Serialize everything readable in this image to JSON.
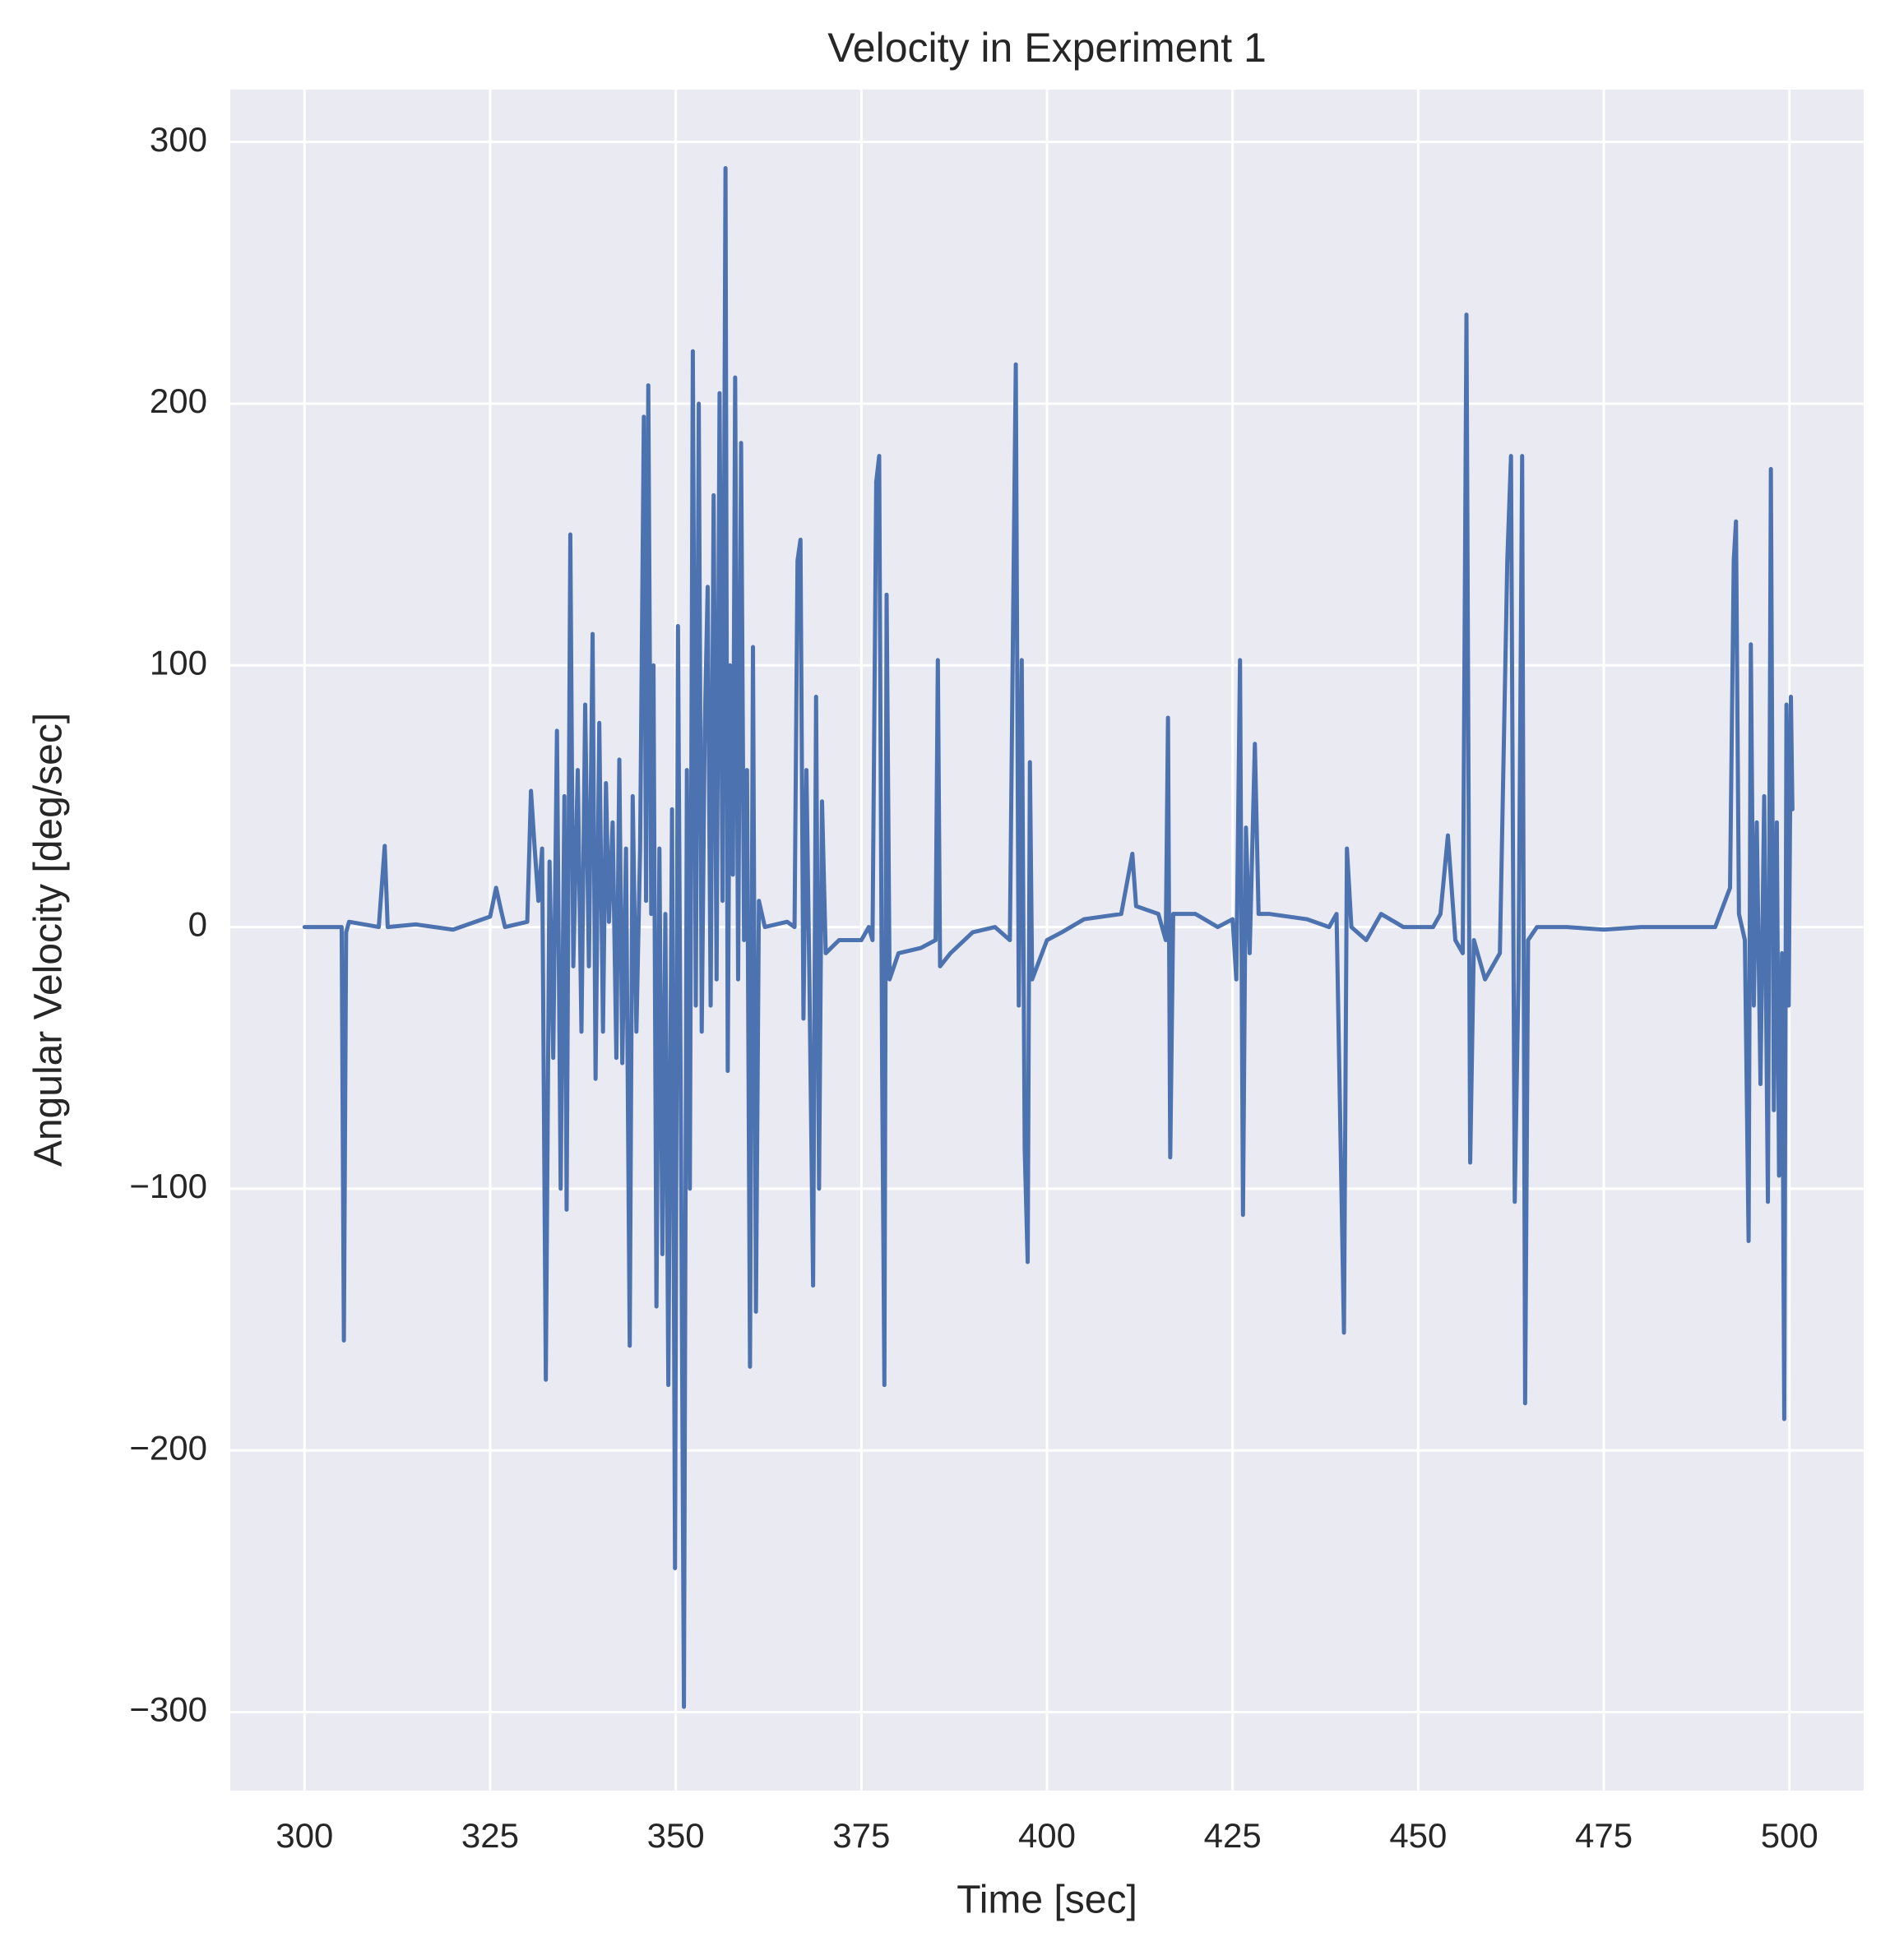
{
  "chart_data": {
    "type": "line",
    "title": "Velocity in Experiment 1",
    "x_label": "Time [sec]",
    "y_label": "Angular Velocity [deg/sec]",
    "color": "#4c72b0",
    "grid": true,
    "xlim": [
      290,
      510
    ],
    "ylim": [
      -330,
      320
    ],
    "xticks": [
      300,
      325,
      350,
      375,
      400,
      425,
      450,
      475,
      500
    ],
    "yticks": [
      {
        "value": -300,
        "label": "−300"
      },
      {
        "value": -200,
        "label": "−200"
      },
      {
        "value": -100,
        "label": "−100"
      },
      0,
      100,
      200,
      300
    ],
    "x": [
      300,
      305,
      305.3,
      305.6,
      306,
      310,
      310.8,
      311.2,
      315,
      320,
      323,
      325,
      325.8,
      326.5,
      327,
      330,
      330.5,
      331,
      331.5,
      332,
      332.5,
      333,
      333.5,
      334,
      334.5,
      335,
      335.3,
      335.8,
      336.2,
      336.8,
      337.3,
      337.8,
      338.3,
      338.8,
      339.2,
      339.7,
      340.2,
      340.6,
      341,
      341.5,
      342,
      342.4,
      342.8,
      343.3,
      343.8,
      344.2,
      344.7,
      345.2,
      345.7,
      346,
      346.3,
      346.7,
      347,
      347.4,
      347.8,
      348.2,
      348.6,
      349,
      349.5,
      349.9,
      350.3,
      350.7,
      351.1,
      351.5,
      351.9,
      352.3,
      352.7,
      353.1,
      353.5,
      353.9,
      354.3,
      354.7,
      355.1,
      355.5,
      355.9,
      356.3,
      356.7,
      357,
      357.3,
      357.7,
      358,
      358.4,
      358.8,
      359.2,
      359.6,
      360,
      360.4,
      360.8,
      361.2,
      362,
      365,
      366,
      366.4,
      366.8,
      367.2,
      367.6,
      368,
      368.5,
      368.9,
      369.3,
      369.7,
      370.2,
      372,
      375,
      376,
      376.5,
      377,
      377.4,
      377.8,
      378.1,
      378.4,
      378.8,
      380,
      383,
      385,
      385.3,
      385.6,
      387,
      390,
      393,
      395,
      395.5,
      395.8,
      396.2,
      396.6,
      397,
      397.4,
      397.7,
      398,
      400,
      402,
      405,
      410,
      411.5,
      412,
      415,
      416,
      416.3,
      416.6,
      417,
      420,
      423,
      425,
      425.5,
      426,
      426.4,
      426.8,
      427.3,
      428,
      428.5,
      430,
      435,
      438,
      439,
      440,
      440.4,
      441,
      443,
      445,
      448,
      452,
      453,
      454,
      455,
      456,
      456.5,
      457,
      457.5,
      459,
      461,
      462,
      462.5,
      463,
      463.5,
      464,
      464.4,
      464.8,
      466,
      470,
      475,
      480,
      485,
      490,
      492,
      492.5,
      492.8,
      493.2,
      494,
      494.5,
      494.8,
      495.2,
      495.6,
      496.1,
      496.6,
      497.1,
      497.5,
      497.9,
      498.3,
      498.6,
      499,
      499.3,
      499.6,
      499.9,
      500.2,
      500.4
    ],
    "values": [
      0,
      0,
      -158,
      -2,
      2,
      0,
      31,
      0,
      1,
      -1,
      2,
      4,
      15,
      6,
      0,
      2,
      52,
      30,
      10,
      30,
      -173,
      25,
      -50,
      75,
      -100,
      50,
      -108,
      150,
      -15,
      60,
      -40,
      85,
      -15,
      112,
      -58,
      78,
      -40,
      55,
      2,
      40,
      -50,
      64,
      -52,
      30,
      -160,
      50,
      -40,
      30,
      195,
      10,
      207,
      5,
      100,
      -145,
      30,
      -125,
      5,
      -175,
      45,
      -245,
      115,
      -80,
      -298,
      60,
      -100,
      220,
      -30,
      200,
      -40,
      75,
      130,
      -30,
      165,
      -20,
      204,
      10,
      290,
      -55,
      100,
      20,
      210,
      -20,
      185,
      -5,
      60,
      -168,
      107,
      -147,
      10,
      0,
      2,
      0,
      140,
      148,
      -35,
      60,
      -20,
      -137,
      88,
      -100,
      48,
      -10,
      -5,
      -5,
      0,
      -5,
      170,
      180,
      -55,
      -175,
      127,
      -20,
      -10,
      -8,
      -5,
      102,
      -15,
      -10,
      -2,
      0,
      -5,
      135,
      215,
      -30,
      102,
      -85,
      -128,
      63,
      -20,
      -5,
      -2,
      3,
      5,
      28,
      8,
      5,
      -5,
      80,
      -88,
      5,
      5,
      0,
      3,
      -20,
      102,
      -110,
      38,
      -10,
      70,
      5,
      5,
      3,
      0,
      5,
      -155,
      30,
      0,
      -5,
      5,
      0,
      0,
      5,
      35,
      -5,
      -10,
      234,
      -90,
      -5,
      -20,
      -10,
      140,
      180,
      -105,
      -20,
      180,
      -182,
      -5,
      0,
      0,
      -1,
      0,
      0,
      0,
      15,
      140,
      155,
      5,
      -5,
      -120,
      108,
      -30,
      40,
      -60,
      50,
      -105,
      175,
      -70,
      40,
      -95,
      -10,
      -188,
      85,
      -30,
      88,
      45
    ]
  }
}
